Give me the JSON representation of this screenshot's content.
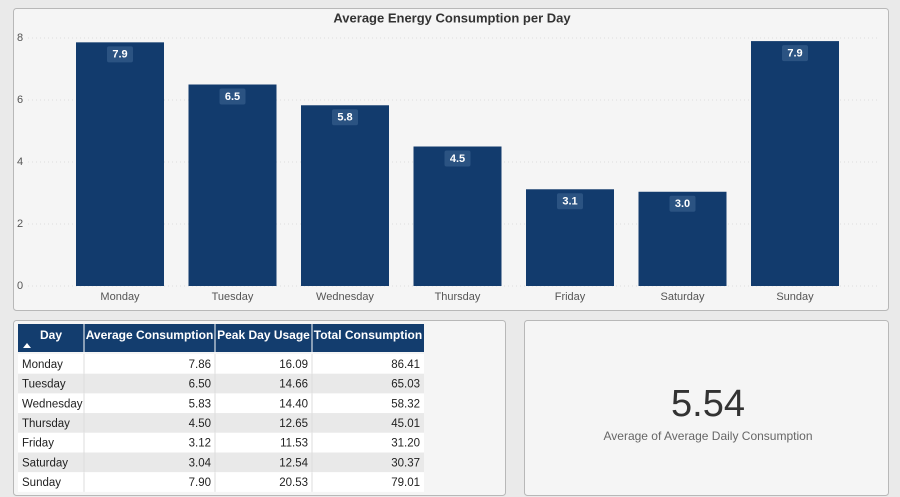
{
  "chart_data": {
    "type": "bar",
    "title": "Average Energy Consumption per Day",
    "categories": [
      "Monday",
      "Tuesday",
      "Wednesday",
      "Thursday",
      "Friday",
      "Saturday",
      "Sunday"
    ],
    "values": [
      7.86,
      6.5,
      5.83,
      4.5,
      3.12,
      3.04,
      7.9
    ],
    "value_labels": [
      "7.9",
      "6.5",
      "5.8",
      "4.5",
      "3.1",
      "3.0",
      "7.9"
    ],
    "color": "#123b6d",
    "ylim": [
      0,
      8
    ],
    "yticks": [
      0,
      2,
      4,
      6,
      8
    ],
    "grid": true
  },
  "table": {
    "header": [
      "Day",
      "Average Consumption",
      "Peak Day Usage",
      "Total Consumption"
    ],
    "rows": [
      [
        "Monday",
        "7.86",
        "16.09",
        "86.41"
      ],
      [
        "Tuesday",
        "6.50",
        "14.66",
        "65.03"
      ],
      [
        "Wednesday",
        "5.83",
        "14.40",
        "58.32"
      ],
      [
        "Thursday",
        "4.50",
        "12.65",
        "45.01"
      ],
      [
        "Friday",
        "3.12",
        "11.53",
        "31.20"
      ],
      [
        "Saturday",
        "3.04",
        "12.54",
        "30.37"
      ],
      [
        "Sunday",
        "7.90",
        "20.53",
        "79.01"
      ]
    ]
  },
  "card": {
    "value": "5.54",
    "label": "Average of Average Daily Consumption"
  }
}
